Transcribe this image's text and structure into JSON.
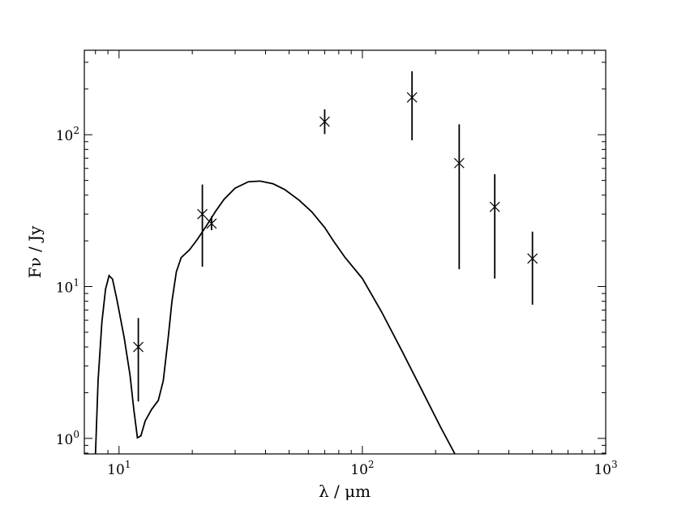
{
  "chart_data": {
    "type": "scatter",
    "title": "",
    "xlabel": "λ / μm",
    "ylabel": "Fν / Jy",
    "xscale": "log",
    "yscale": "log",
    "xlim": [
      7.2,
      1000
    ],
    "ylim": [
      0.79,
      360
    ],
    "grid": false,
    "legend": "none",
    "x_ticks": [
      {
        "value": 10,
        "base": "10",
        "exp": "1"
      },
      {
        "value": 100,
        "base": "10",
        "exp": "2"
      },
      {
        "value": 1000,
        "base": "10",
        "exp": "3"
      }
    ],
    "y_ticks": [
      {
        "value": 1,
        "base": "10",
        "exp": "0"
      },
      {
        "value": 10,
        "base": "10",
        "exp": "1"
      },
      {
        "value": 100,
        "base": "10",
        "exp": "2"
      }
    ],
    "series": [
      {
        "kind": "observations",
        "marker": "x",
        "color": "#000000",
        "points": [
          {
            "x": 12,
            "y": 4.0,
            "ylo": 1.75,
            "yhi": 6.2
          },
          {
            "x": 22,
            "y": 30,
            "ylo": 13.5,
            "yhi": 47
          },
          {
            "x": 24,
            "y": 26,
            "ylo": 23.5,
            "yhi": 29
          },
          {
            "x": 70,
            "y": 122,
            "ylo": 101,
            "yhi": 147
          },
          {
            "x": 160,
            "y": 176,
            "ylo": 92,
            "yhi": 262
          },
          {
            "x": 250,
            "y": 65,
            "ylo": 13,
            "yhi": 117
          },
          {
            "x": 350,
            "y": 33.5,
            "ylo": 11.3,
            "yhi": 55
          },
          {
            "x": 500,
            "y": 15.3,
            "ylo": 7.6,
            "yhi": 23
          }
        ]
      },
      {
        "kind": "model",
        "style": "line",
        "color": "#000000",
        "x": [
          8.0,
          8.2,
          8.5,
          8.8,
          9.1,
          9.4,
          9.8,
          10.5,
          11.1,
          11.5,
          11.9,
          12.3,
          12.8,
          13.6,
          14.5,
          15.2,
          15.9,
          16.5,
          17.2,
          18.0,
          19.5,
          21.0,
          23.0,
          25.0,
          27.0,
          30.0,
          34.0,
          38.0,
          43.0,
          48.0,
          55.0,
          62.0,
          70.0,
          76.0,
          85.0,
          100.0,
          120.0,
          145.0,
          175.0,
          210.0,
          240.0
        ],
        "y": [
          0.78,
          2.4,
          5.8,
          9.6,
          11.8,
          11.2,
          8.2,
          4.6,
          2.6,
          1.55,
          1.01,
          1.04,
          1.3,
          1.55,
          1.78,
          2.4,
          4.5,
          8.0,
          12.5,
          15.5,
          17.5,
          20.5,
          25.5,
          31.5,
          37.5,
          44.5,
          49.0,
          49.5,
          47.5,
          43.5,
          37.0,
          31.0,
          24.5,
          20.0,
          15.5,
          11.3,
          6.8,
          3.8,
          2.1,
          1.18,
          0.79
        ]
      }
    ]
  }
}
